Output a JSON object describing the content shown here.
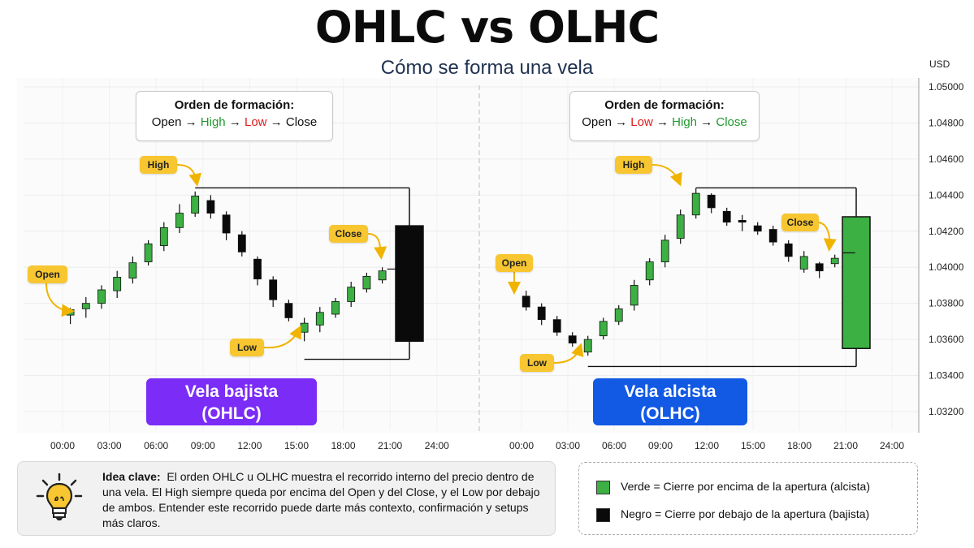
{
  "title": "OHLC vs OLHC",
  "subtitle": "Cómo se forma una vela",
  "left_panel": {
    "order_title": "Orden de formación:",
    "order_sequence": [
      {
        "text": "Open",
        "color": "#111111"
      },
      {
        "text": " → ",
        "color": "#111111"
      },
      {
        "text": "High",
        "color": "#1f9a2c"
      },
      {
        "text": " → ",
        "color": "#111111"
      },
      {
        "text": "Low",
        "color": "#e01b1b"
      },
      {
        "text": " → ",
        "color": "#111111"
      },
      {
        "text": "Close",
        "color": "#111111"
      }
    ],
    "labels": {
      "open": "Open",
      "high": "High",
      "low": "Low",
      "close": "Close"
    },
    "type_label_line1": "Vela bajista",
    "type_label_line2": "(OHLC)",
    "type_color": "#7b2cf6"
  },
  "right_panel": {
    "order_title": "Orden de formación:",
    "order_sequence": [
      {
        "text": "Open",
        "color": "#111111"
      },
      {
        "text": " → ",
        "color": "#111111"
      },
      {
        "text": "Low",
        "color": "#e01b1b"
      },
      {
        "text": " → ",
        "color": "#111111"
      },
      {
        "text": "High",
        "color": "#1f9a2c"
      },
      {
        "text": " → ",
        "color": "#111111"
      },
      {
        "text": "Close",
        "color": "#1f9a2c"
      }
    ],
    "labels": {
      "open": "Open",
      "high": "High",
      "low": "Low",
      "close": "Close"
    },
    "type_label_line1": "Vela alcista",
    "type_label_line2": "(OLHC)",
    "type_color": "#1259e4"
  },
  "info": {
    "heading": "Idea clave:",
    "body": "El orden OHLC u OLHC muestra el recorrido interno del precio dentro de una vela. El High siempre queda por encima del Open y del Close, y el Low por debajo de ambos. Entender este recorrido puede darte más contexto, confirmación y setups más claros.",
    "icon": "lightbulb-icon"
  },
  "legend": {
    "items": [
      {
        "label": "Verde = Cierre por encima de la apertura (alcista)",
        "color": "#3cb043"
      },
      {
        "label": "Negro = Cierre por debajo de la apertura (bajista)",
        "color": "#0a0a0a"
      }
    ]
  },
  "colors": {
    "bull": "#3cb043",
    "bear": "#0a0a0a",
    "callout": "#f7c630"
  },
  "chart_data": [
    {
      "type": "candlestick",
      "title": "Vela bajista (OHLC)",
      "x_ticks": [
        "00:00",
        "03:00",
        "06:00",
        "09:00",
        "12:00",
        "15:00",
        "18:00",
        "21:00",
        "24:00"
      ],
      "y_ticks": [
        "1.05000",
        "1.04800",
        "1.04600",
        "1.04400",
        "1.04200",
        "1.04000",
        "1.03800",
        "1.03600",
        "1.03400",
        "1.03200"
      ],
      "ylabel": "USD",
      "ylim": [
        1.0313,
        1.0505
      ],
      "xlim_hours": [
        -1.2,
        27
      ],
      "intraday_candles": [
        {
          "t": 0.5,
          "o": 1.03735,
          "h": 1.03775,
          "l": 1.03685,
          "c": 1.03765
        },
        {
          "t": 1.5,
          "o": 1.0377,
          "h": 1.03835,
          "l": 1.0372,
          "c": 1.038
        },
        {
          "t": 2.5,
          "o": 1.038,
          "h": 1.039,
          "l": 1.0377,
          "c": 1.03875
        },
        {
          "t": 3.5,
          "o": 1.0387,
          "h": 1.0398,
          "l": 1.0383,
          "c": 1.03945
        },
        {
          "t": 4.5,
          "o": 1.0394,
          "h": 1.0406,
          "l": 1.0391,
          "c": 1.04025
        },
        {
          "t": 5.5,
          "o": 1.0403,
          "h": 1.0415,
          "l": 1.0401,
          "c": 1.0413
        },
        {
          "t": 6.5,
          "o": 1.0412,
          "h": 1.0425,
          "l": 1.0409,
          "c": 1.0422
        },
        {
          "t": 7.5,
          "o": 1.0422,
          "h": 1.0435,
          "l": 1.0419,
          "c": 1.043
        },
        {
          "t": 8.5,
          "o": 1.043,
          "h": 1.0442,
          "l": 1.0428,
          "c": 1.04395
        },
        {
          "t": 9.5,
          "o": 1.0437,
          "h": 1.044,
          "l": 1.0427,
          "c": 1.043
        },
        {
          "t": 10.5,
          "o": 1.0429,
          "h": 1.0431,
          "l": 1.0415,
          "c": 1.0419
        },
        {
          "t": 11.5,
          "o": 1.0418,
          "h": 1.042,
          "l": 1.0406,
          "c": 1.04085
        },
        {
          "t": 12.5,
          "o": 1.04045,
          "h": 1.0406,
          "l": 1.039,
          "c": 1.03935
        },
        {
          "t": 13.5,
          "o": 1.0393,
          "h": 1.0395,
          "l": 1.0378,
          "c": 1.0382
        },
        {
          "t": 14.5,
          "o": 1.038,
          "h": 1.0382,
          "l": 1.037,
          "c": 1.0372
        },
        {
          "t": 15.5,
          "o": 1.0364,
          "h": 1.0372,
          "l": 1.0359,
          "c": 1.0369
        },
        {
          "t": 16.5,
          "o": 1.0368,
          "h": 1.0378,
          "l": 1.0364,
          "c": 1.0375
        },
        {
          "t": 17.5,
          "o": 1.0374,
          "h": 1.0383,
          "l": 1.0372,
          "c": 1.0381
        },
        {
          "t": 18.5,
          "o": 1.0381,
          "h": 1.0392,
          "l": 1.0378,
          "c": 1.0389
        },
        {
          "t": 19.5,
          "o": 1.0388,
          "h": 1.0397,
          "l": 1.0386,
          "c": 1.0395
        },
        {
          "t": 20.5,
          "o": 1.0393,
          "h": 1.04,
          "l": 1.0391,
          "c": 1.0398
        }
      ],
      "big_candle": {
        "o": 1.0423,
        "h": 1.0444,
        "l": 1.0349,
        "c": 1.0359,
        "color": "bear"
      },
      "annotations": {
        "open": 1.0374,
        "high": 1.0444,
        "low": 1.036,
        "close": 1.0399
      }
    },
    {
      "type": "candlestick",
      "title": "Vela alcista (OLHC)",
      "x_ticks": [
        "00:00",
        "03:00",
        "06:00",
        "09:00",
        "12:00",
        "15:00",
        "18:00",
        "21:00",
        "24:00"
      ],
      "y_ticks": [
        "1.05000",
        "1.04800",
        "1.04600",
        "1.04400",
        "1.04200",
        "1.04000",
        "1.03800",
        "1.03600",
        "1.03400",
        "1.03200"
      ],
      "ylabel": "USD",
      "ylim": [
        1.0313,
        1.0505
      ],
      "xlim_hours": [
        -1.2,
        27
      ],
      "intraday_candles": [
        {
          "t": 0.3,
          "o": 1.0384,
          "h": 1.0387,
          "l": 1.0376,
          "c": 1.0378
        },
        {
          "t": 1.3,
          "o": 1.0378,
          "h": 1.038,
          "l": 1.0368,
          "c": 1.0371
        },
        {
          "t": 2.3,
          "o": 1.0371,
          "h": 1.0373,
          "l": 1.0362,
          "c": 1.0364
        },
        {
          "t": 3.3,
          "o": 1.0362,
          "h": 1.0364,
          "l": 1.0356,
          "c": 1.0358
        },
        {
          "t": 4.3,
          "o": 1.0353,
          "h": 1.0362,
          "l": 1.0351,
          "c": 1.036
        },
        {
          "t": 5.3,
          "o": 1.0362,
          "h": 1.0372,
          "l": 1.036,
          "c": 1.037
        },
        {
          "t": 6.3,
          "o": 1.037,
          "h": 1.0379,
          "l": 1.0368,
          "c": 1.0377
        },
        {
          "t": 7.3,
          "o": 1.0379,
          "h": 1.0393,
          "l": 1.0376,
          "c": 1.039
        },
        {
          "t": 8.3,
          "o": 1.0393,
          "h": 1.0405,
          "l": 1.039,
          "c": 1.0403
        },
        {
          "t": 9.3,
          "o": 1.0403,
          "h": 1.0418,
          "l": 1.04,
          "c": 1.0415
        },
        {
          "t": 10.3,
          "o": 1.0416,
          "h": 1.0432,
          "l": 1.0413,
          "c": 1.0429
        },
        {
          "t": 11.3,
          "o": 1.0429,
          "h": 1.0444,
          "l": 1.0427,
          "c": 1.0441
        },
        {
          "t": 12.3,
          "o": 1.044,
          "h": 1.0441,
          "l": 1.043,
          "c": 1.0433
        },
        {
          "t": 13.3,
          "o": 1.0431,
          "h": 1.0433,
          "l": 1.0423,
          "c": 1.0425
        },
        {
          "t": 14.3,
          "o": 1.0426,
          "h": 1.0429,
          "l": 1.042,
          "c": 1.0425
        },
        {
          "t": 15.3,
          "o": 1.0423,
          "h": 1.0425,
          "l": 1.0418,
          "c": 1.042
        },
        {
          "t": 16.3,
          "o": 1.0421,
          "h": 1.0423,
          "l": 1.0412,
          "c": 1.0414
        },
        {
          "t": 17.3,
          "o": 1.0413,
          "h": 1.0415,
          "l": 1.0403,
          "c": 1.0406
        },
        {
          "t": 18.3,
          "o": 1.0399,
          "h": 1.0409,
          "l": 1.0397,
          "c": 1.0406
        },
        {
          "t": 19.3,
          "o": 1.0402,
          "h": 1.0403,
          "l": 1.0394,
          "c": 1.0398
        },
        {
          "t": 20.3,
          "o": 1.0402,
          "h": 1.0407,
          "l": 1.04,
          "c": 1.0405
        },
        {
          "t": 21.3,
          "o": 1.0406,
          "h": 1.0411,
          "l": 1.0405,
          "c": 1.0409
        }
      ],
      "big_candle": {
        "o": 1.0355,
        "h": 1.0444,
        "l": 1.0345,
        "c": 1.0428,
        "color": "bull"
      },
      "annotations": {
        "open": 1.0382,
        "high": 1.0444,
        "low": 1.0351,
        "close": 1.0408
      }
    }
  ]
}
